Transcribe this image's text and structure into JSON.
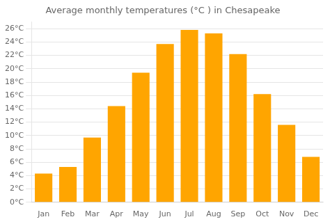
{
  "chart_data": {
    "type": "bar",
    "title": "Average monthly temperatures (°C ) in Chesapeake",
    "categories": [
      "Jan",
      "Feb",
      "Mar",
      "Apr",
      "May",
      "Jun",
      "Jul",
      "Aug",
      "Sep",
      "Oct",
      "Nov",
      "Dec"
    ],
    "values": [
      4.3,
      5.3,
      9.7,
      14.4,
      19.4,
      23.7,
      25.8,
      25.3,
      22.2,
      16.2,
      11.6,
      6.8
    ],
    "color": "#FFA500",
    "ylim": [
      0,
      27
    ],
    "yticks": [
      {
        "value": 0,
        "label": "0°C"
      },
      {
        "value": 2,
        "label": "2°C"
      },
      {
        "value": 4,
        "label": "4°C"
      },
      {
        "value": 6,
        "label": "6°C"
      },
      {
        "value": 8,
        "label": "8°C"
      },
      {
        "value": 10,
        "label": "10°C"
      },
      {
        "value": 12,
        "label": "12°C"
      },
      {
        "value": 14,
        "label": "14°C"
      },
      {
        "value": 16,
        "label": "16°C"
      },
      {
        "value": 18,
        "label": "18°C"
      },
      {
        "value": 20,
        "label": "20°C"
      },
      {
        "value": 22,
        "label": "22°C"
      },
      {
        "value": 24,
        "label": "24°C"
      },
      {
        "value": 26,
        "label": "26°C"
      }
    ],
    "grid": true
  }
}
